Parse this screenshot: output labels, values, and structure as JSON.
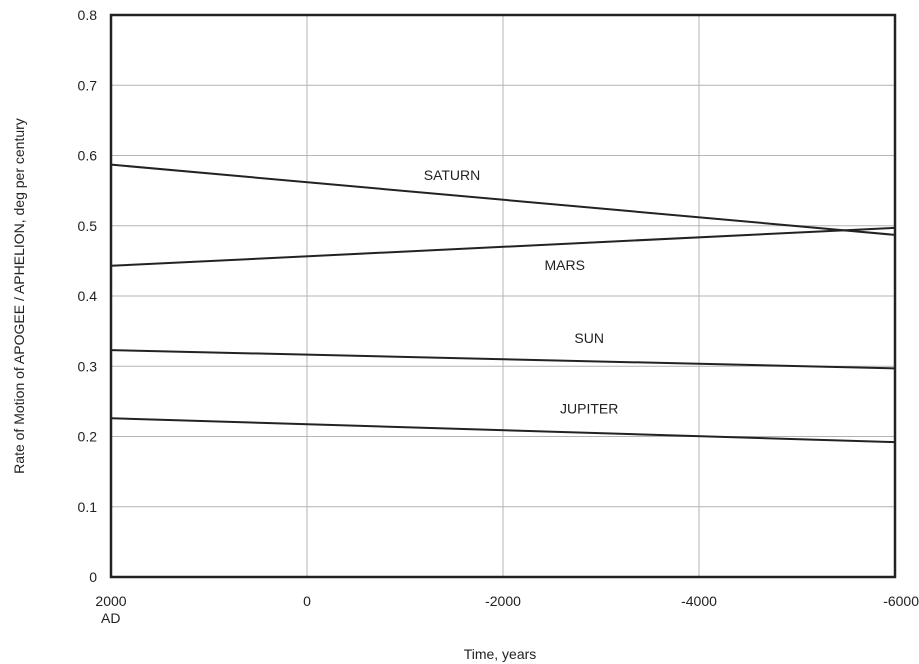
{
  "chart_data": {
    "type": "line",
    "xlabel": "Time, years",
    "ylabel": "Rate of Motion of APOGEE / APHELION, deg per century",
    "xlim": [
      2000,
      -6000
    ],
    "ylim": [
      0,
      0.8
    ],
    "grid": true,
    "x_ticks": [
      {
        "value": 2000,
        "label": "2000",
        "sublabel": "AD"
      },
      {
        "value": 0,
        "label": "0"
      },
      {
        "value": -2000,
        "label": "-2000"
      },
      {
        "value": -4000,
        "label": "-4000"
      },
      {
        "value": -6000,
        "label": "-6000"
      }
    ],
    "y_ticks": [
      {
        "value": 0,
        "label": "0"
      },
      {
        "value": 0.1,
        "label": "0.1"
      },
      {
        "value": 0.2,
        "label": "0.2"
      },
      {
        "value": 0.3,
        "label": "0.3"
      },
      {
        "value": 0.4,
        "label": "0.4"
      },
      {
        "value": 0.5,
        "label": "0.5"
      },
      {
        "value": 0.6,
        "label": "0.6"
      },
      {
        "value": 0.7,
        "label": "0.7"
      },
      {
        "value": 0.8,
        "label": "0.8"
      }
    ],
    "series": [
      {
        "name": "SATURN",
        "x": [
          2000,
          -6000
        ],
        "values": [
          0.587,
          0.487
        ]
      },
      {
        "name": "MARS",
        "x": [
          2000,
          -6000
        ],
        "values": [
          0.443,
          0.497
        ]
      },
      {
        "name": "SUN",
        "x": [
          2000,
          -6000
        ],
        "values": [
          0.323,
          0.297
        ]
      },
      {
        "name": "JUPITER",
        "x": [
          2000,
          -6000
        ],
        "values": [
          0.226,
          0.192
        ]
      }
    ],
    "annotations": [
      {
        "text": "SATURN",
        "x": 0,
        "y": 0.565
      },
      {
        "text": "MARS",
        "x": -1150,
        "y": 0.437
      },
      {
        "text": "SUN",
        "x": -1400,
        "y": 0.333
      },
      {
        "text": "JUPITER",
        "x": -1400,
        "y": 0.233
      }
    ]
  }
}
